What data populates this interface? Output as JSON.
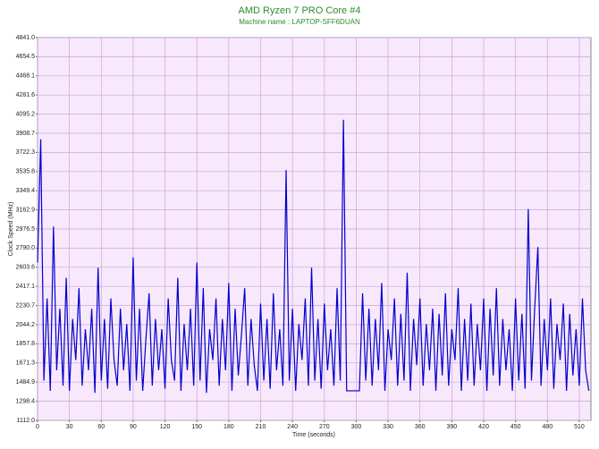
{
  "chart_data": {
    "type": "line",
    "title": "AMD Ryzen 7 PRO Core #4",
    "subtitle": "Machine name : LAPTOP-SFF6DUAN",
    "x_label": "Time (seconds)",
    "y_label": "Clock Speed (MHz)",
    "x": [
      0,
      3,
      6,
      9,
      12,
      15,
      18,
      21,
      24,
      27,
      30,
      33,
      36,
      39,
      42,
      45,
      48,
      51,
      54,
      57,
      60,
      63,
      66,
      69,
      72,
      75,
      78,
      81,
      84,
      87,
      90,
      93,
      96,
      99,
      102,
      105,
      108,
      111,
      114,
      117,
      120,
      123,
      126,
      129,
      132,
      135,
      138,
      141,
      144,
      147,
      150,
      153,
      156,
      159,
      162,
      165,
      168,
      171,
      174,
      177,
      180,
      183,
      186,
      189,
      192,
      195,
      198,
      201,
      204,
      207,
      210,
      213,
      216,
      219,
      222,
      225,
      228,
      231,
      234,
      237,
      240,
      243,
      246,
      249,
      252,
      255,
      258,
      261,
      264,
      267,
      270,
      273,
      276,
      279,
      282,
      285,
      288,
      291,
      294,
      297,
      300,
      303,
      306,
      309,
      312,
      315,
      318,
      321,
      324,
      327,
      330,
      333,
      336,
      339,
      342,
      345,
      348,
      351,
      354,
      357,
      360,
      363,
      366,
      369,
      372,
      375,
      378,
      381,
      384,
      387,
      390,
      393,
      396,
      399,
      402,
      405,
      408,
      411,
      414,
      417,
      420,
      423,
      426,
      429,
      432,
      435,
      438,
      441,
      444,
      447,
      450,
      453,
      456,
      459,
      462,
      465,
      468,
      471,
      474,
      477,
      480,
      483,
      486,
      489,
      492,
      495,
      498,
      501,
      504,
      507,
      510,
      513,
      516,
      519
    ],
    "series": [
      {
        "name": "Clock Speed",
        "color": "#0000cc",
        "values": [
          2650,
          3850,
          1500,
          2300,
          1400,
          3000,
          1600,
          2200,
          1450,
          2500,
          1400,
          2100,
          1700,
          2400,
          1450,
          2000,
          1600,
          2200,
          1380,
          2600,
          1500,
          2100,
          1420,
          2300,
          1700,
          1450,
          2200,
          1600,
          2050,
          1400,
          2700,
          1500,
          2200,
          1400,
          1900,
          2350,
          1450,
          2100,
          1600,
          2000,
          1420,
          2300,
          1700,
          1500,
          2500,
          1400,
          2050,
          1600,
          2200,
          1450,
          2650,
          1500,
          2400,
          1380,
          2000,
          1700,
          2300,
          1450,
          2100,
          1600,
          2450,
          1400,
          2200,
          1550,
          1950,
          2400,
          1450,
          2100,
          1650,
          1400,
          2250,
          1500,
          2100,
          1420,
          2350,
          1600,
          2000,
          1450,
          3550,
          1500,
          2200,
          1400,
          2050,
          1700,
          2300,
          1450,
          2600,
          1500,
          2100,
          1420,
          2250,
          1600,
          2000,
          1450,
          2400,
          1500,
          4040,
          1400,
          1400,
          1400,
          1400,
          1400,
          2350,
          1500,
          2200,
          1450,
          2100,
          1600,
          2450,
          1400,
          2000,
          1700,
          2300,
          1450,
          2150,
          1500,
          2550,
          1400,
          2100,
          1650,
          2300,
          1450,
          2050,
          1600,
          2200,
          1400,
          2150,
          1550,
          2350,
          1450,
          2000,
          1700,
          2400,
          1400,
          2100,
          1500,
          2250,
          1450,
          2050,
          1600,
          2300,
          1400,
          2200,
          1550,
          2400,
          1450,
          2100,
          1600,
          2000,
          1400,
          2300,
          1500,
          2150,
          1420,
          3170,
          1500,
          2200,
          2800,
          1450,
          2100,
          1600,
          2300,
          1420,
          2050,
          1700,
          2250,
          1400,
          2150,
          1550,
          2000,
          1450,
          2300,
          1600,
          1400
        ]
      }
    ],
    "xlim": [
      0,
      521
    ],
    "xticks": [
      0,
      30,
      60,
      90,
      120,
      150,
      180,
      210,
      240,
      270,
      300,
      330,
      360,
      390,
      420,
      450,
      480,
      510
    ],
    "ylim": [
      1112,
      4841
    ],
    "yticks": [
      {
        "value": 1112,
        "label": "1112.0"
      },
      1298.4,
      1484.9,
      1671.3,
      1857.8,
      2044.2,
      2230.7,
      2417.1,
      2603.6,
      {
        "value": 2790,
        "label": "2790.0"
      },
      2976.5,
      3162.9,
      3349.4,
      3535.8,
      3722.3,
      3908.7,
      4095.2,
      4281.6,
      4468.1,
      4654.5,
      {
        "value": 4841,
        "label": "4841.0"
      }
    ],
    "grid": true
  }
}
